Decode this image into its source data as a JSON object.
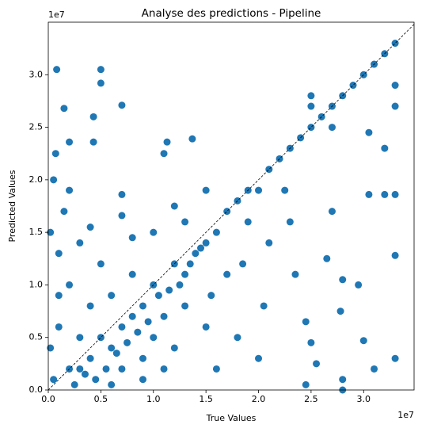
{
  "chart_data": {
    "type": "scatter",
    "title": "Analyse des predictions - Pipeline",
    "x_label": "True Values",
    "y_label": "Predicted Values",
    "x_offset_label": "1e7",
    "y_offset_label": "1e7",
    "color": "#1f77b4",
    "reference_line": true,
    "xlim": [
      0,
      3.48
    ],
    "ylim": [
      0,
      3.5
    ],
    "xticks": [
      {
        "value": 0,
        "label": "0.0"
      },
      0.5,
      {
        "value": 1,
        "label": "1.0"
      },
      1.5,
      {
        "value": 2,
        "label": "2.0"
      },
      2.5,
      {
        "value": 3,
        "label": "3.0"
      }
    ],
    "yticks": [
      {
        "value": 0,
        "label": "0.0"
      },
      0.5,
      {
        "value": 1,
        "label": "1.0"
      },
      1.5,
      {
        "value": 2,
        "label": "2.0"
      },
      2.5,
      {
        "value": 3,
        "label": "3.0"
      }
    ],
    "x": [
      0.08,
      0.5,
      0.5,
      0.7,
      0.15,
      0.43,
      0.2,
      0.43,
      1.37,
      1.13,
      1.1,
      0.07,
      0.7,
      0.7,
      2.5,
      2.5,
      3.3,
      3.2,
      3.0,
      2.8,
      3.3,
      3.3,
      3.3,
      3.2,
      3.05,
      3.05,
      3.2,
      3.3,
      3.3,
      3.1,
      3.0,
      2.95,
      2.8,
      2.8,
      2.78,
      2.7,
      2.7,
      2.6,
      2.65,
      2.55,
      2.5,
      2.45,
      2.35,
      2.3,
      2.25,
      2.2,
      2.1,
      2.05,
      2.0,
      2.0,
      1.9,
      1.85,
      1.8,
      1.8,
      1.7,
      1.6,
      1.6,
      1.55,
      1.5,
      1.5,
      1.4,
      1.3,
      1.3,
      1.2,
      1.2,
      1.1,
      1.0,
      1.0,
      0.9,
      0.9,
      0.8,
      0.8,
      0.7,
      0.7,
      0.6,
      0.6,
      0.5,
      0.5,
      0.4,
      0.4,
      0.3,
      0.3,
      0.2,
      0.2,
      0.15,
      0.1,
      0.1,
      0.05,
      0.05,
      0.02,
      0.02,
      0.25,
      0.35,
      0.45,
      0.55,
      0.65,
      0.75,
      0.85,
      0.95,
      1.05,
      1.15,
      1.25,
      1.35,
      1.45,
      0.1,
      0.3,
      0.6,
      0.9,
      1.1,
      1.0,
      1.3,
      1.5,
      1.7,
      1.9,
      2.1,
      2.3,
      2.4,
      2.5,
      2.7,
      2.9,
      3.1,
      0.4,
      0.2,
      0.8,
      1.2,
      2.45,
      2.8
    ],
    "y": [
      3.05,
      3.05,
      2.92,
      2.71,
      2.68,
      2.6,
      2.36,
      2.36,
      2.39,
      2.36,
      2.25,
      2.25,
      1.86,
      1.66,
      2.8,
      2.7,
      3.3,
      3.2,
      3.0,
      2.8,
      2.9,
      2.7,
      1.86,
      1.86,
      1.86,
      2.45,
      2.3,
      1.28,
      0.3,
      0.2,
      0.47,
      1.0,
      1.05,
      0.1,
      0.75,
      1.7,
      2.5,
      2.6,
      1.25,
      0.25,
      0.45,
      0.65,
      1.1,
      1.6,
      1.9,
      2.2,
      1.4,
      0.8,
      1.9,
      0.3,
      1.6,
      1.2,
      0.5,
      1.8,
      1.1,
      1.5,
      0.2,
      0.9,
      1.4,
      0.6,
      1.3,
      0.8,
      1.1,
      0.4,
      1.2,
      0.7,
      1.0,
      0.5,
      0.8,
      0.3,
      0.7,
      1.1,
      0.6,
      0.2,
      0.9,
      0.4,
      0.5,
      1.2,
      0.3,
      0.8,
      0.5,
      1.4,
      0.2,
      1.0,
      1.7,
      0.6,
      1.3,
      2.0,
      0.1,
      0.4,
      1.5,
      0.05,
      0.15,
      0.1,
      0.2,
      0.35,
      0.45,
      0.55,
      0.65,
      0.9,
      0.95,
      1.0,
      1.2,
      1.35,
      0.9,
      0.2,
      0.05,
      0.1,
      0.2,
      1.5,
      1.6,
      1.9,
      1.7,
      1.9,
      2.1,
      2.3,
      2.4,
      2.5,
      2.7,
      2.9,
      3.1,
      1.55,
      1.9,
      1.45,
      1.75,
      0.05,
      0.0
    ]
  }
}
